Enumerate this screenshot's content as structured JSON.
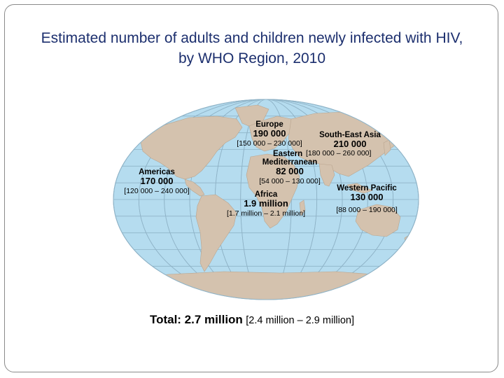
{
  "title": {
    "line1": "Estimated number of adults and children newly infected with HIV,",
    "line2": "by WHO Region, 2010"
  },
  "colors": {
    "ocean": "#b5dcef",
    "land": "#d4c2ae",
    "grid": "#8fb3c7",
    "title_text": "#1c2f6e"
  },
  "regions": {
    "europe": {
      "name": "Europe",
      "value": "190 000",
      "range": "[150 000 – 230 000]"
    },
    "south_east_asia": {
      "name": "South-East Asia",
      "value": "210 000",
      "range": "[180 000 – 260 000]"
    },
    "eastern_mediterranean": {
      "name_line1": "Eastern",
      "name_line2": "Mediterranean",
      "value": "82 000",
      "range": "[54 000 – 130 000]"
    },
    "americas": {
      "name": "Americas",
      "value": "170 000",
      "range": "[120 000 – 240 000]"
    },
    "africa": {
      "name": "Africa",
      "value": "1.9 million",
      "range": "[1.7 million – 2.1 million]"
    },
    "western_pacific": {
      "name": "Western Pacific",
      "value": "130 000",
      "range": "[88 000 – 190 000]"
    }
  },
  "total": {
    "label": "Total: 2.7 million",
    "range": "[2.4 million – 2.9 million]"
  }
}
